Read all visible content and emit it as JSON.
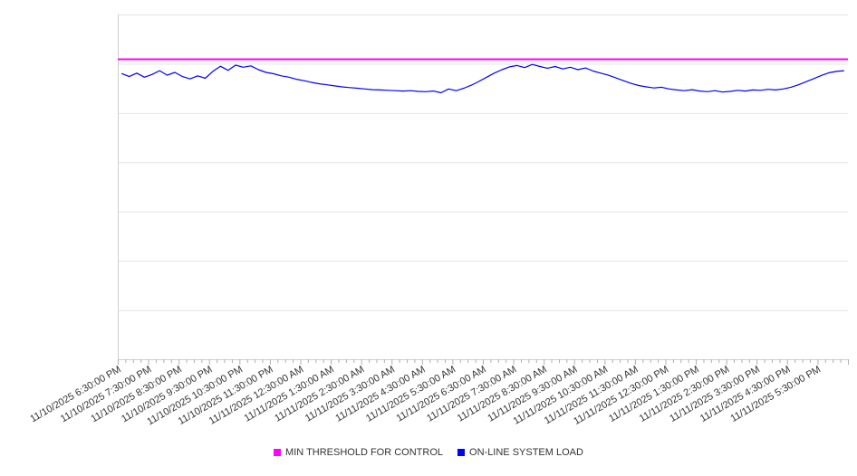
{
  "legend": {
    "items": [
      {
        "label": "MIN THRESHOLD FOR CONTROL",
        "color": "#ff00ff"
      },
      {
        "label": "ON-LINE SYSTEM LOAD",
        "color": "#0000ff"
      }
    ]
  },
  "chart_data": {
    "type": "line",
    "title": "",
    "xlabel": "",
    "ylabel": "",
    "ylim": [
      0,
      100
    ],
    "grid": true,
    "grid_divisions": 7,
    "legend_position": "bottom",
    "x_labels": [
      "11/10/2025 6:30:00 PM",
      "11/10/2025 7:30:00 PM",
      "11/10/2025 8:30:00 PM",
      "11/10/2025 9:30:00 PM",
      "11/10/2025 10:30:00 PM",
      "11/10/2025 11:30:00 PM",
      "11/11/2025 12:30:00 AM",
      "11/11/2025 1:30:00 AM",
      "11/11/2025 2:30:00 AM",
      "11/11/2025 3:30:00 AM",
      "11/11/2025 4:30:00 AM",
      "11/11/2025 5:30:00 AM",
      "11/11/2025 6:30:00 AM",
      "11/11/2025 7:30:00 AM",
      "11/11/2025 8:30:00 AM",
      "11/11/2025 9:30:00 AM",
      "11/11/2025 10:30:00 AM",
      "11/11/2025 11:30:00 AM",
      "11/11/2025 12:30:00 PM",
      "11/11/2025 1:30:00 PM",
      "11/11/2025 2:30:00 PM",
      "11/11/2025 3:30:00 PM",
      "11/11/2025 4:30:00 PM",
      "11/11/2025 5:30:00 PM"
    ],
    "labels_every_n_points": 4,
    "series": [
      {
        "name": "MIN THRESHOLD FOR CONTROL",
        "color": "#ff00ff",
        "type": "constant",
        "value": 87
      },
      {
        "name": "ON-LINE SYSTEM LOAD",
        "color": "#0000ff",
        "type": "line",
        "values": [
          82.9,
          82.0,
          83.0,
          81.8,
          82.6,
          83.7,
          82.4,
          83.2,
          82.0,
          81.3,
          82.2,
          81.5,
          83.5,
          85.0,
          83.8,
          85.3,
          84.7,
          85.1,
          84.0,
          83.2,
          82.8,
          82.2,
          81.8,
          81.2,
          80.8,
          80.3,
          79.9,
          79.6,
          79.3,
          79.0,
          78.8,
          78.6,
          78.4,
          78.2,
          78.1,
          78.0,
          77.9,
          77.8,
          77.9,
          77.7,
          77.6,
          77.8,
          77.3,
          78.4,
          77.9,
          78.6,
          79.5,
          80.6,
          81.8,
          83.0,
          84.0,
          84.8,
          85.2,
          84.6,
          85.5,
          84.9,
          84.4,
          84.9,
          84.2,
          84.7,
          84.0,
          84.5,
          83.6,
          83.0,
          82.4,
          81.6,
          80.8,
          80.0,
          79.4,
          79.0,
          78.7,
          78.9,
          78.4,
          78.1,
          77.9,
          78.2,
          77.8,
          77.6,
          77.9,
          77.5,
          77.7,
          78.0,
          77.8,
          78.1,
          78.0,
          78.3,
          78.1,
          78.4,
          78.9,
          79.6,
          80.5,
          81.4,
          82.3,
          83.1,
          83.5,
          83.7
        ]
      }
    ],
    "colors": {
      "grid": "#e4e4e4",
      "axis": "#cfcfcf",
      "tick": "#b0b0b0",
      "label_text": "#333333",
      "background": "#ffffff"
    }
  }
}
